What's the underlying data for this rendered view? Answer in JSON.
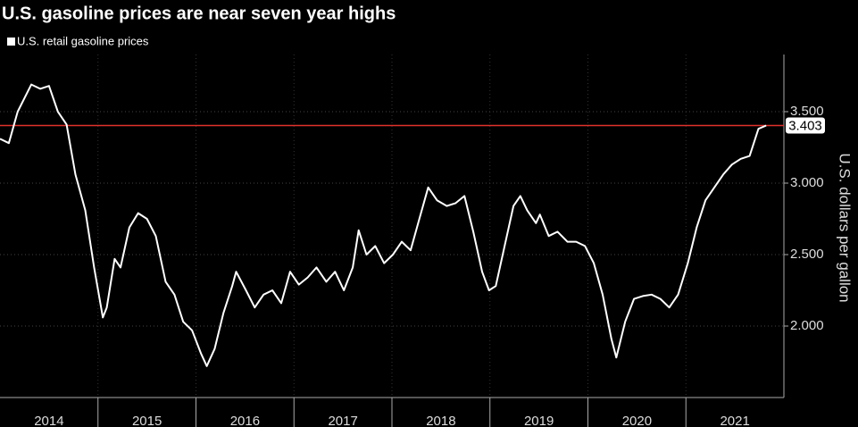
{
  "chart_data": {
    "type": "line",
    "title": "U.S. gasoline prices are near seven year highs",
    "y_label": "U.S. dollars per gallon",
    "series": [
      {
        "name": "U.S. retail gasoline prices",
        "color": "#ffffff",
        "x": [
          2014.0,
          2014.09,
          2014.18,
          2014.32,
          2014.41,
          2014.5,
          2014.59,
          2014.68,
          2014.77,
          2014.87,
          2014.96,
          2015.05,
          2015.09,
          2015.17,
          2015.23,
          2015.32,
          2015.41,
          2015.5,
          2015.59,
          2015.69,
          2015.78,
          2015.87,
          2015.96,
          2016.05,
          2016.11,
          2016.19,
          2016.28,
          2016.37,
          2016.41,
          2016.51,
          2016.6,
          2016.69,
          2016.78,
          2016.87,
          2016.96,
          2017.05,
          2017.14,
          2017.23,
          2017.33,
          2017.42,
          2017.51,
          2017.6,
          2017.66,
          2017.74,
          2017.83,
          2017.92,
          2018.01,
          2018.1,
          2018.19,
          2018.28,
          2018.37,
          2018.46,
          2018.56,
          2018.65,
          2018.74,
          2018.83,
          2018.92,
          2018.99,
          2019.06,
          2019.15,
          2019.24,
          2019.31,
          2019.38,
          2019.47,
          2019.51,
          2019.6,
          2019.69,
          2019.79,
          2019.88,
          2019.97,
          2020.06,
          2020.15,
          2020.24,
          2020.29,
          2020.38,
          2020.47,
          2020.56,
          2020.65,
          2020.74,
          2020.83,
          2020.92,
          2021.02,
          2021.11,
          2021.2,
          2021.29,
          2021.38,
          2021.47,
          2021.56,
          2021.65,
          2021.74,
          2021.82
        ],
        "values": [
          3.31,
          3.28,
          3.5,
          3.69,
          3.66,
          3.68,
          3.5,
          3.41,
          3.06,
          2.81,
          2.41,
          2.06,
          2.13,
          2.47,
          2.41,
          2.69,
          2.79,
          2.75,
          2.63,
          2.31,
          2.22,
          2.03,
          1.97,
          1.81,
          1.72,
          1.84,
          2.09,
          2.28,
          2.38,
          2.25,
          2.13,
          2.22,
          2.25,
          2.16,
          2.38,
          2.29,
          2.34,
          2.41,
          2.31,
          2.38,
          2.25,
          2.41,
          2.67,
          2.5,
          2.56,
          2.44,
          2.5,
          2.59,
          2.53,
          2.75,
          2.97,
          2.88,
          2.84,
          2.86,
          2.91,
          2.66,
          2.38,
          2.25,
          2.28,
          2.56,
          2.84,
          2.91,
          2.81,
          2.72,
          2.78,
          2.63,
          2.66,
          2.59,
          2.59,
          2.56,
          2.44,
          2.22,
          1.91,
          1.78,
          2.03,
          2.19,
          2.21,
          2.22,
          2.19,
          2.13,
          2.22,
          2.44,
          2.69,
          2.88,
          2.97,
          3.06,
          3.13,
          3.17,
          3.19,
          3.38,
          3.403
        ]
      }
    ],
    "reference_line": {
      "value": 3.403,
      "color": "#e0302c"
    },
    "xlim": [
      2014,
      2022
    ],
    "x_separators": [
      2015,
      2016,
      2017,
      2018,
      2019,
      2020,
      2021
    ],
    "xticks": [
      {
        "value": 2014.5,
        "label": "2014"
      },
      {
        "value": 2015.5,
        "label": "2015"
      },
      {
        "value": 2016.5,
        "label": "2016"
      },
      {
        "value": 2017.5,
        "label": "2017"
      },
      {
        "value": 2018.5,
        "label": "2018"
      },
      {
        "value": 2019.5,
        "label": "2019"
      },
      {
        "value": 2020.5,
        "label": "2020"
      },
      {
        "value": 2021.5,
        "label": "2021"
      }
    ],
    "ylim": [
      1.5,
      3.9
    ],
    "yticks": [
      {
        "value": 2,
        "label": "2.000"
      },
      {
        "value": 2.5,
        "label": "2.500"
      },
      {
        "value": 3,
        "label": "3.000"
      },
      {
        "value": 3.5,
        "label": "3.500"
      }
    ],
    "grid": true
  }
}
